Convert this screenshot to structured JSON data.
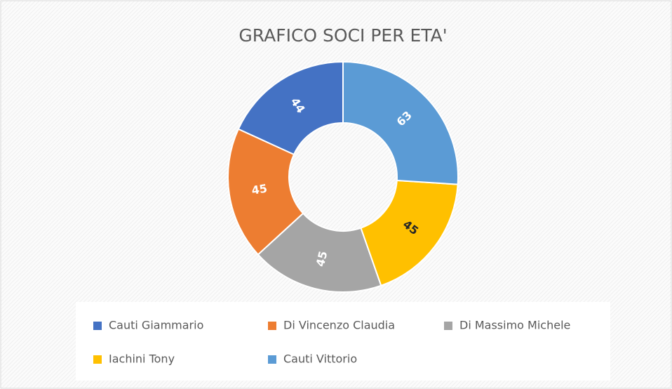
{
  "chart_data": {
    "type": "donut",
    "title": "GRAFICO SOCI PER ETA'",
    "categories": [
      "Cauti Giammario",
      "Di Vincenzo Claudia",
      "Di Massimo Michele",
      "Iachini Tony",
      "Cauti Vittorio"
    ],
    "values": [
      44,
      45,
      45,
      45,
      63
    ],
    "colors": [
      "#4472c4",
      "#ed7d31",
      "#a5a5a5",
      "#ffc000",
      "#5b9bd5"
    ],
    "label_colors": [
      "#ffffff",
      "#ffffff",
      "#ffffff",
      "#262626",
      "#ffffff"
    ],
    "legend": "bottom"
  }
}
